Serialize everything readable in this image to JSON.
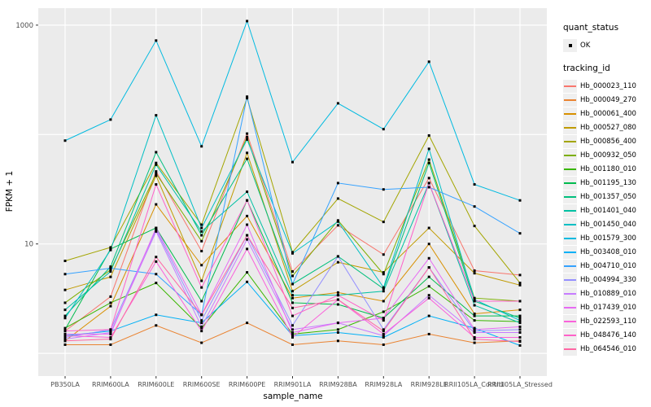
{
  "figure": {
    "x_axis_title": "sample_name",
    "y_axis_title": "FPKM + 1",
    "panel_bg": "#EBEBEB",
    "grid_color": "#FFFFFF",
    "tick_text_color": "#4D4D4D",
    "point_color": "#000000"
  },
  "legend": {
    "quant_status_title": "quant_status",
    "quant_status_items": [
      {
        "label": "OK"
      }
    ],
    "tracking_id_title": "tracking_id"
  },
  "chart_data": {
    "type": "line",
    "title": "",
    "xlabel": "sample_name",
    "ylabel": "FPKM + 1",
    "y_scale": "log10",
    "ylim": [
      0.62,
      1430
    ],
    "y_gridlines": [
      1,
      10,
      100,
      1000
    ],
    "y_labeled_ticks": [
      10,
      1000
    ],
    "legend_position": "right",
    "grid": "on",
    "x_categories": [
      "PB350LA",
      "RRIM600LA",
      "RRIM600LE",
      "RRIM600SE",
      "RRIM600PE",
      "RRIM901LA",
      "RRIM928BA",
      "RRIM928LA",
      "RRIM928LE",
      "RRII105LA_Control",
      "RRII105LA_Stressed"
    ],
    "series": [
      {
        "name": "Hb_000023_110",
        "color": "#F8766D",
        "values": [
          1.6,
          3.3,
          46,
          8.6,
          102,
          5.6,
          14.8,
          8.0,
          40,
          5.7,
          5.2
        ]
      },
      {
        "name": "Hb_000049_270",
        "color": "#EA8331",
        "values": [
          1.2,
          1.2,
          1.8,
          1.25,
          1.9,
          1.2,
          1.3,
          1.2,
          1.5,
          1.25,
          1.3
        ]
      },
      {
        "name": "Hb_000061_400",
        "color": "#D89000",
        "values": [
          1.3,
          2.7,
          23,
          6.4,
          18,
          3.2,
          3.6,
          3.0,
          10,
          2.3,
          2.5
        ]
      },
      {
        "name": "Hb_000527_080",
        "color": "#C09B00",
        "values": [
          3.8,
          5.0,
          42,
          4.6,
          68,
          3.7,
          6.8,
          5.5,
          14,
          5.4,
          4.2
        ]
      },
      {
        "name": "Hb_000856_400",
        "color": "#A3A500",
        "values": [
          7.0,
          9.3,
          55,
          15,
          215,
          8.4,
          26,
          15.9,
          98,
          14.6,
          4.4
        ]
      },
      {
        "name": "Hb_000932_050",
        "color": "#7CAE00",
        "values": [
          2.9,
          5.8,
          44,
          10.6,
          95,
          5.1,
          16.4,
          5.3,
          59,
          3.2,
          3.0
        ]
      },
      {
        "name": "Hb_001180_010",
        "color": "#39B600",
        "values": [
          1.7,
          2.9,
          4.4,
          1.7,
          5.5,
          1.5,
          1.65,
          2.4,
          4.1,
          2.0,
          1.95
        ]
      },
      {
        "name": "Hb_001195_130",
        "color": "#00BB4E",
        "values": [
          1.65,
          9.0,
          14,
          3.0,
          25,
          2.9,
          2.8,
          2.1,
          5.0,
          2.2,
          2.2
        ]
      },
      {
        "name": "Hb_001357_050",
        "color": "#00BF7D",
        "values": [
          2.2,
          6.2,
          69,
          12,
          60,
          4.3,
          7.7,
          3.9,
          55,
          3.0,
          2.1
        ]
      },
      {
        "name": "Hb_001401_040",
        "color": "#00C1A3",
        "values": [
          2.5,
          5.6,
          53,
          13,
          30,
          3.4,
          3.4,
          3.7,
          36,
          2.75,
          1.9
        ]
      },
      {
        "name": "Hb_001450_040",
        "color": "#00BFC4",
        "values": [
          2.1,
          8.8,
          150,
          14,
          90,
          8.2,
          16.0,
          4.0,
          74,
          3.1,
          2.0
        ]
      },
      {
        "name": "Hb_001579_300",
        "color": "#00BAE0",
        "values": [
          88,
          137,
          723,
          78,
          1089,
          56,
          193,
          112,
          463,
          35,
          25
        ]
      },
      {
        "name": "Hb_003408_010",
        "color": "#00B0F6",
        "values": [
          1.45,
          1.6,
          2.25,
          1.9,
          4.5,
          1.45,
          1.55,
          1.4,
          2.2,
          1.7,
          1.18
        ]
      },
      {
        "name": "Hb_004710_010",
        "color": "#35A2FF",
        "values": [
          5.3,
          6.0,
          5.3,
          2.25,
          222,
          4.3,
          36,
          31.5,
          33,
          22,
          12.5
        ]
      },
      {
        "name": "Hb_004994_330",
        "color": "#9590FF",
        "values": [
          1.4,
          1.65,
          13.5,
          2.0,
          12,
          1.8,
          7.7,
          1.65,
          6.1,
          1.6,
          1.65
        ]
      },
      {
        "name": "Hb_010889_010",
        "color": "#C77CFF",
        "values": [
          1.35,
          1.55,
          13,
          1.75,
          11,
          1.65,
          1.9,
          1.45,
          3.4,
          1.55,
          1.55
        ]
      },
      {
        "name": "Hb_017439_010",
        "color": "#E76BF3",
        "values": [
          1.5,
          1.5,
          14,
          2.25,
          15,
          1.55,
          1.9,
          2.1,
          7.4,
          1.65,
          1.75
        ]
      },
      {
        "name": "Hb_022593_110",
        "color": "#FA62DB",
        "values": [
          1.45,
          1.4,
          6.9,
          1.6,
          9.0,
          1.4,
          3.1,
          1.5,
          3.2,
          1.4,
          1.4
        ]
      },
      {
        "name": "Hb_048476_140",
        "color": "#FF61C9",
        "values": [
          1.6,
          1.65,
          35,
          4.0,
          25,
          2.2,
          3.4,
          2.0,
          36,
          3.0,
          3.0
        ]
      },
      {
        "name": "Hb_064546_010",
        "color": "#FF67A4",
        "values": [
          1.3,
          1.35,
          7.6,
          2.25,
          12,
          2.6,
          3.1,
          1.6,
          6.1,
          1.35,
          1.28
        ]
      }
    ]
  }
}
